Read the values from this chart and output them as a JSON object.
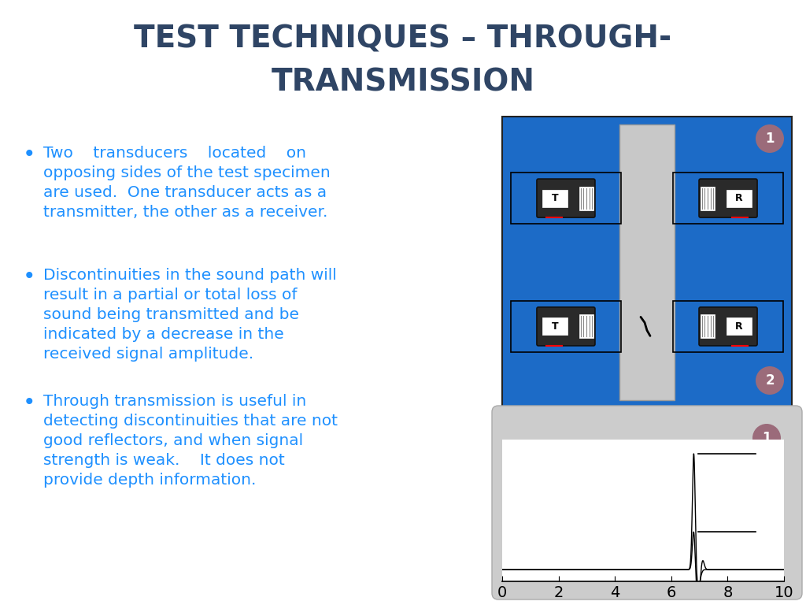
{
  "title_line1": "TEST TECHNIQUES – THROUGH-",
  "title_line2": "TRANSMISSION",
  "title_color": "#2F4565",
  "title_fontsize": 28,
  "bullet_color": "#1E90FF",
  "bullet_fontsize": 14.5,
  "bullets": [
    "Two    transducers    located    on\nopposing sides of the test specimen\nare used.  One transducer acts as a\ntransmitter, the other as a receiver.",
    "Discontinuities in the sound path will\nresult in a partial or total loss of\nsound being transmitted and be\nindicated by a decrease in the\nreceived signal amplitude.",
    "Through transmission is useful in\ndetecting discontinuities that are not\ngood reflectors, and when signal\nstrength is weak.    It does not\nprovide depth information."
  ],
  "bg_color": "#FFFFFF",
  "diagram_bg": "#1C6BC7",
  "specimen_color": "#C8C8C8",
  "transducer_body_color": "#1C1C1C",
  "transducer_face_color": "#FFFFFF",
  "label_circle_color": "#9B6B7A",
  "label_text_color": "#FFFFFF",
  "waveform_bg": "#D0D0D0",
  "chart_bg": "#FFFFFF"
}
